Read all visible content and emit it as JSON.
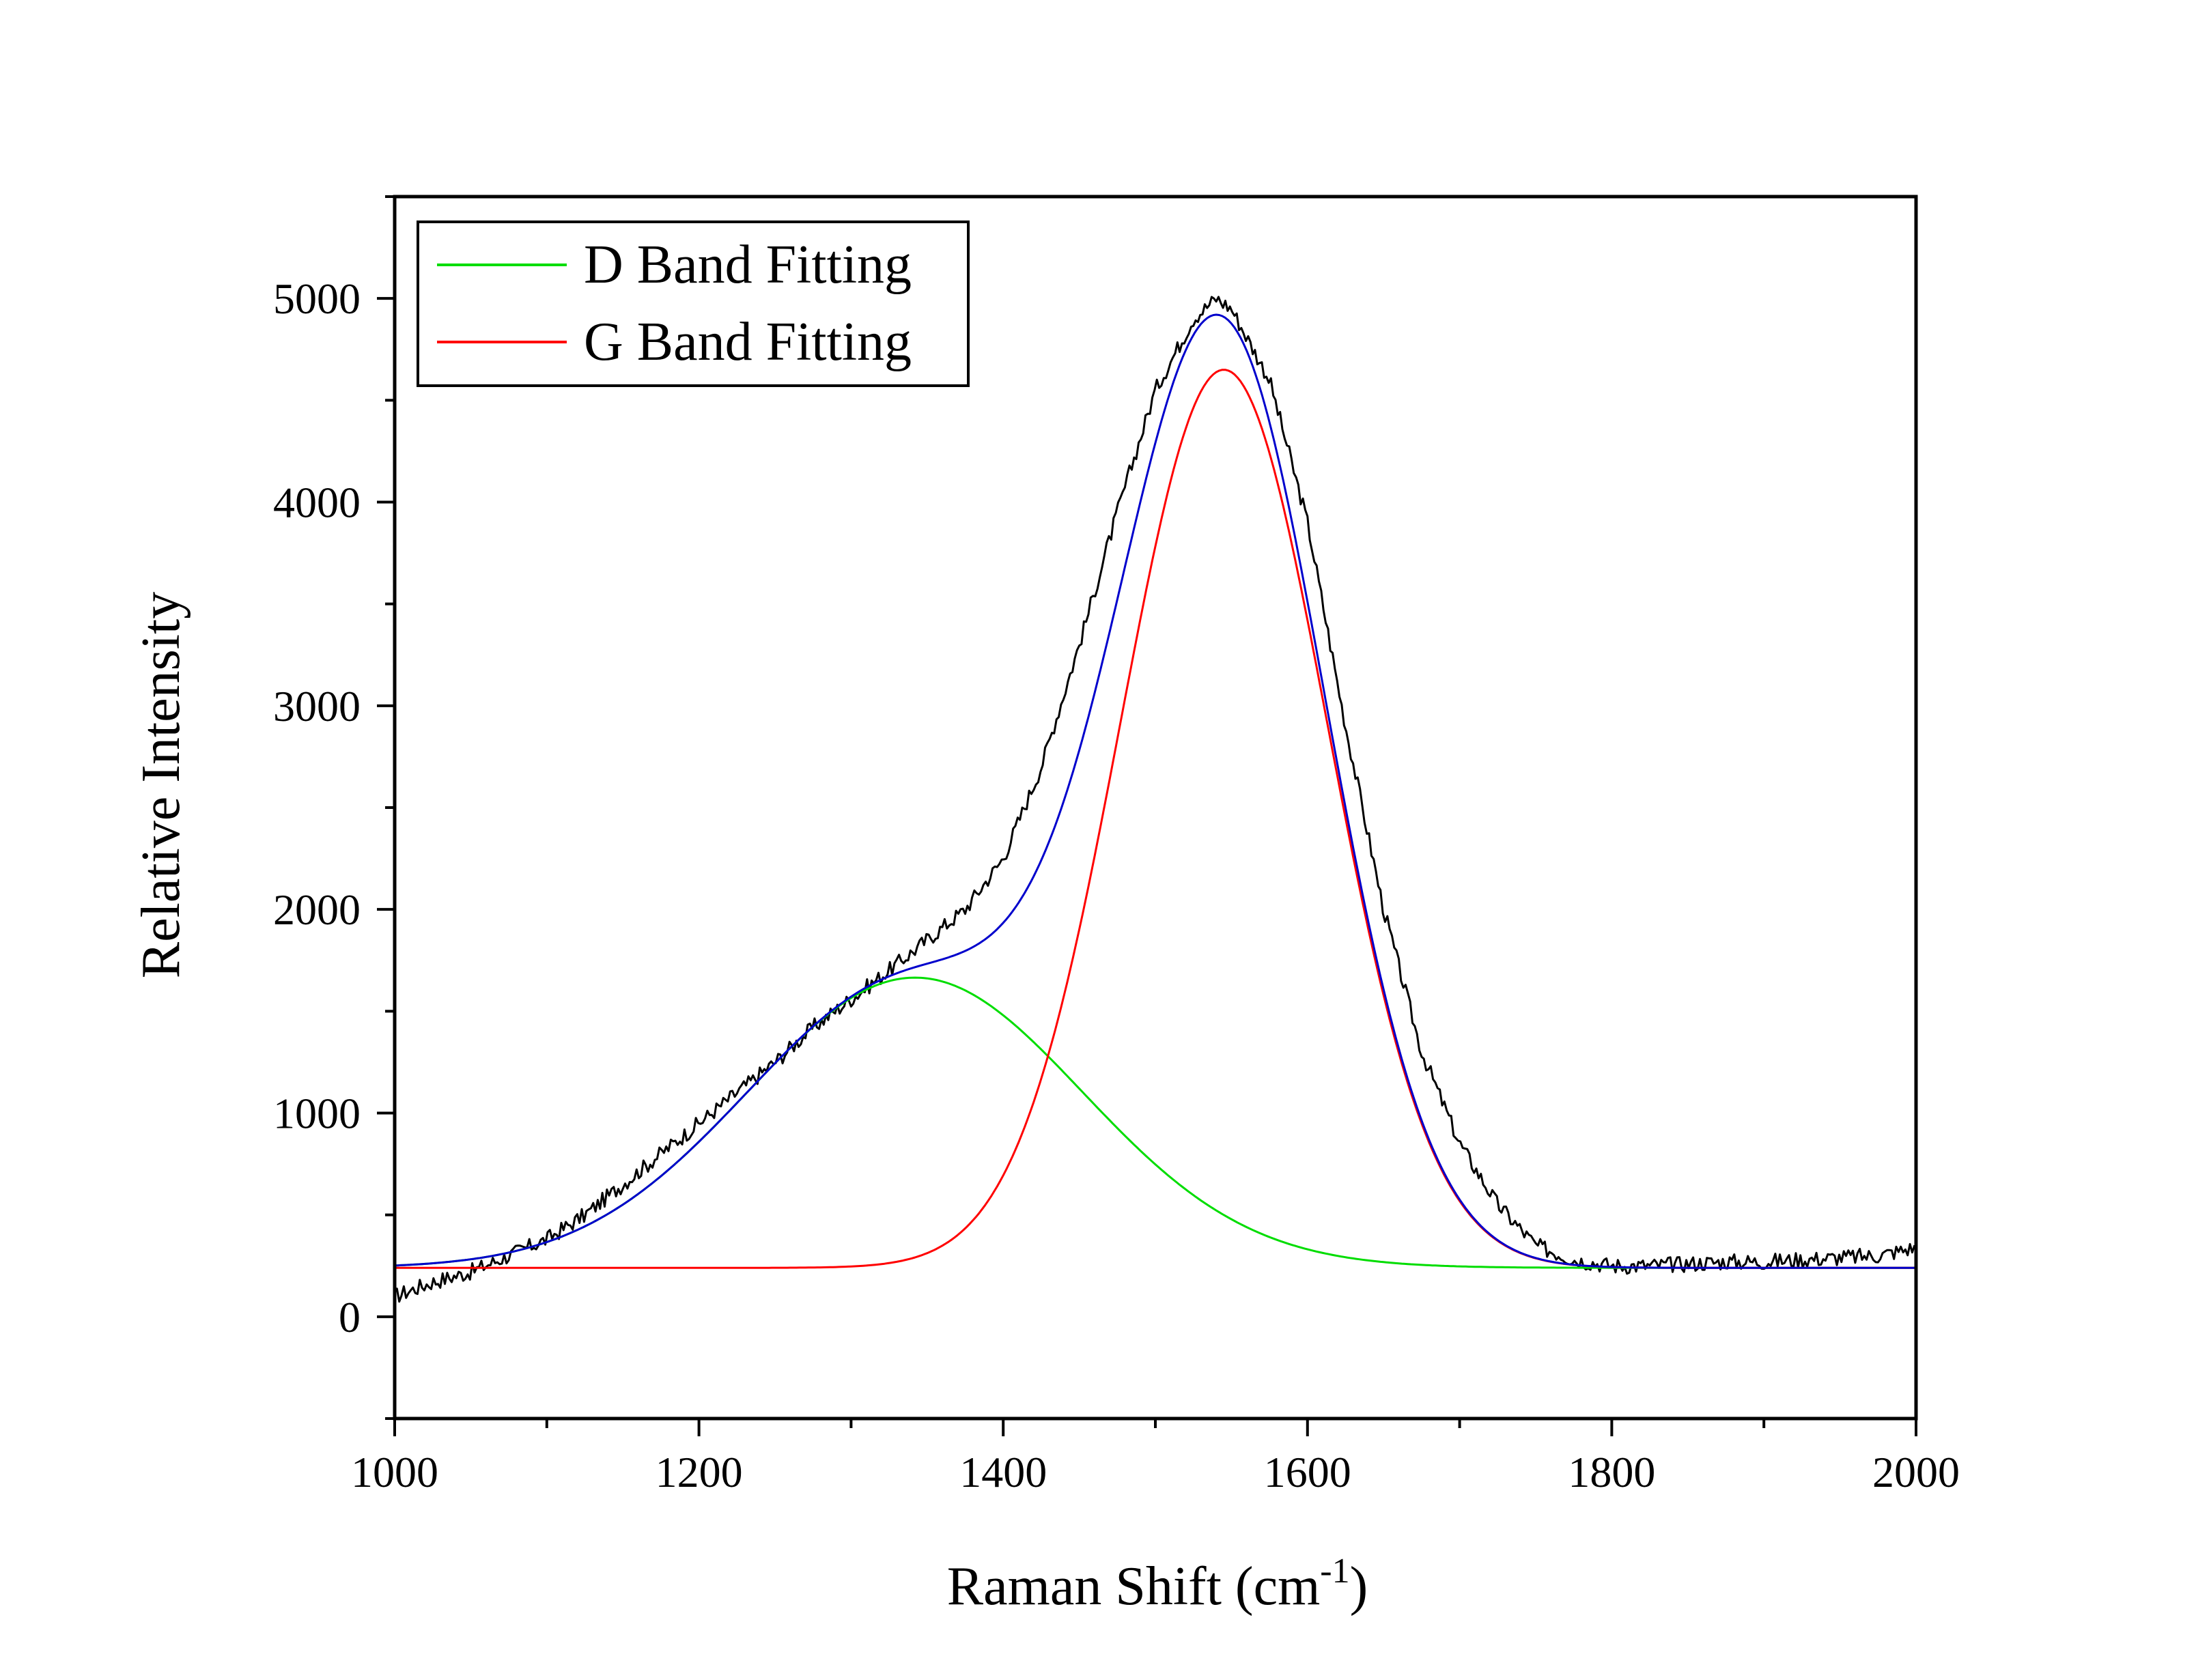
{
  "chart_data": {
    "type": "line",
    "title": "",
    "xlabel": "Raman Shift (cm",
    "xlabel_sup": "-1",
    "xlabel_suffix": ")",
    "ylabel": "Relative Intensity",
    "xlim": [
      1000,
      2000
    ],
    "ylim": [
      -500,
      5500
    ],
    "x_ticks": [
      1000,
      1200,
      1400,
      1600,
      1800,
      2000
    ],
    "y_ticks": [
      0,
      1000,
      2000,
      3000,
      4000,
      5000
    ],
    "x_minor_step": 100,
    "y_minor_step": 500,
    "grid": false,
    "legend_position": "top-left",
    "baseline": 240,
    "series": [
      {
        "name": "D Band Fitting",
        "color": "#00dd00",
        "in_legend": true,
        "model": {
          "type": "gaussian",
          "center": 1342,
          "amplitude": 1425,
          "sigma": 110,
          "baseline": 240
        }
      },
      {
        "name": "G Band Fitting",
        "color": "#ff0000",
        "in_legend": true,
        "model": {
          "type": "gaussian",
          "center": 1545,
          "amplitude": 4410,
          "sigma": 68,
          "baseline": 240
        }
      },
      {
        "color": "#0000cc",
        "in_legend": false,
        "model": {
          "type": "sum_of_fits",
          "components": [
            0,
            1
          ],
          "baseline": 240
        }
      },
      {
        "color": "#000000",
        "in_legend": false,
        "x": [
          1000,
          1025,
          1050,
          1075,
          1100,
          1125,
          1150,
          1175,
          1200,
          1225,
          1250,
          1275,
          1300,
          1325,
          1350,
          1375,
          1400,
          1425,
          1450,
          1475,
          1500,
          1525,
          1540,
          1550,
          1575,
          1600,
          1625,
          1650,
          1675,
          1700,
          1725,
          1750,
          1775,
          1800,
          1825,
          1850,
          1875,
          1900,
          1925,
          1950,
          1975,
          2000
        ],
        "y": [
          100,
          170,
          220,
          300,
          380,
          500,
          650,
          800,
          950,
          1100,
          1250,
          1420,
          1560,
          1700,
          1850,
          2000,
          2250,
          2700,
          3300,
          3950,
          4550,
          4900,
          5000,
          4950,
          4600,
          3900,
          2900,
          2000,
          1300,
          850,
          550,
          350,
          280,
          250,
          250,
          260,
          270,
          270,
          280,
          290,
          300,
          340
        ]
      }
    ]
  }
}
